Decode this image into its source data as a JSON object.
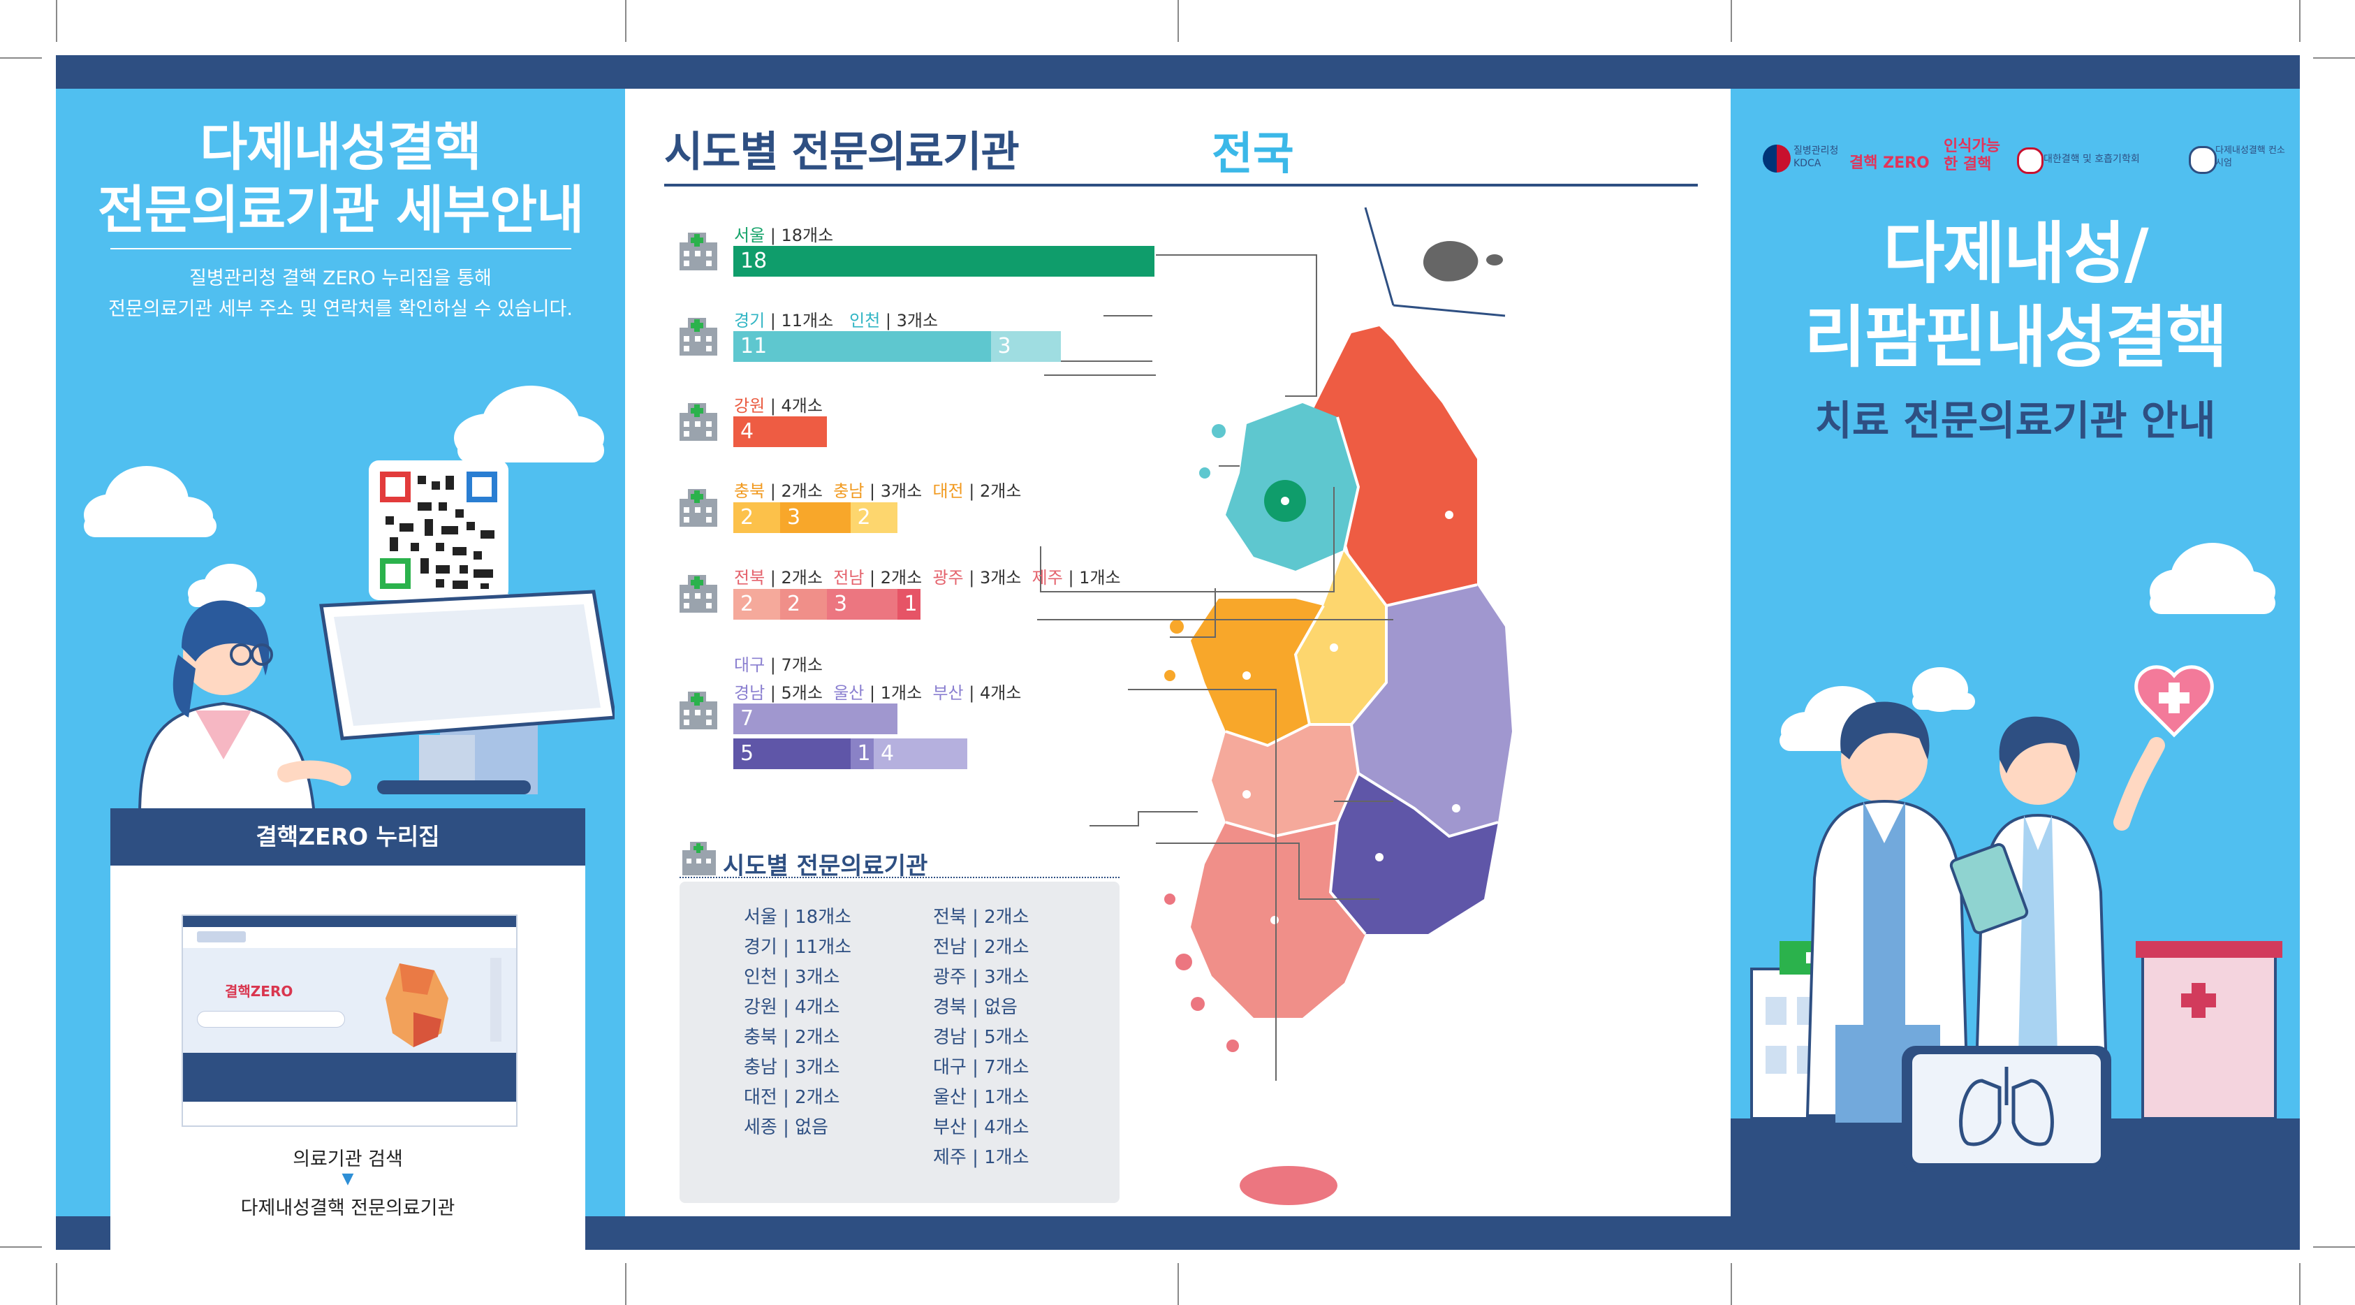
{
  "left": {
    "title_line1": "다제내성결핵",
    "title_line2": "전문의료기관 세부안내",
    "desc_line1": "질병관리청 결핵 ZERO 누리집을 통해",
    "desc_line2": "전문의료기관 세부 주소 및 연락처를 확인하실 수 있습니다.",
    "url": "결핵ZERO 누리집 https://tbzero.kdca.go.kr",
    "browser_brand": "결핵ZERO",
    "caption_search": "의료기관 검색",
    "caption_arrow": "▼",
    "caption_target": "다제내성결핵 전문의료기관"
  },
  "middle": {
    "title": "시도별 전문의료기관",
    "scope": "전국",
    "list_title": "시도별 전문의료기관",
    "regions": [
      {
        "label_parts": [
          {
            "name": "서울",
            "count": "18개소",
            "color": "#16a36a"
          }
        ],
        "segments": [
          {
            "value": 18,
            "color": "#0f9d6b"
          }
        ]
      },
      {
        "label_parts": [
          {
            "name": "경기",
            "count": "11개소",
            "color": "#31b5c4"
          },
          {
            "name": "인천",
            "count": "3개소",
            "color": "#31b5c4"
          }
        ],
        "segments": [
          {
            "value": 11,
            "color": "#5ec7cf"
          },
          {
            "value": 3,
            "color": "#9fdde1"
          }
        ]
      },
      {
        "label_parts": [
          {
            "name": "강원",
            "count": "4개소",
            "color": "#ea5a3f"
          }
        ],
        "segments": [
          {
            "value": 4,
            "color": "#ee5c43"
          }
        ]
      },
      {
        "label_parts": [
          {
            "name": "충북",
            "count": "2개소",
            "color": "#f19a20"
          },
          {
            "name": "충남",
            "count": "3개소",
            "color": "#f19a20"
          },
          {
            "name": "대전",
            "count": "2개소",
            "color": "#f19a20"
          }
        ],
        "segments": [
          {
            "value": 2,
            "color": "#fcc14a"
          },
          {
            "value": 3,
            "color": "#f8a72a"
          },
          {
            "value": 2,
            "color": "#fdd66e"
          }
        ]
      },
      {
        "label_parts": [
          {
            "name": "전북",
            "count": "2개소",
            "color": "#e4626c"
          },
          {
            "name": "전남",
            "count": "2개소",
            "color": "#e4626c"
          },
          {
            "name": "광주",
            "count": "3개소",
            "color": "#e4626c"
          },
          {
            "name": "제주",
            "count": "1개소",
            "color": "#e4626c"
          }
        ],
        "segments": [
          {
            "value": 2,
            "color": "#f5a99b"
          },
          {
            "value": 2,
            "color": "#f08f89"
          },
          {
            "value": 3,
            "color": "#ec7680"
          },
          {
            "value": 1,
            "color": "#e65466"
          }
        ]
      },
      {
        "label_parts": [
          {
            "name": "대구",
            "count": "7개소",
            "color": "#8a7fd0"
          }
        ],
        "extra_parts": [
          {
            "name": "경남",
            "count": "5개소",
            "color": "#8a7fd0"
          },
          {
            "name": "울산",
            "count": "1개소",
            "color": "#8a7fd0"
          },
          {
            "name": "부산",
            "count": "4개소",
            "color": "#8a7fd0"
          }
        ],
        "segments": [
          {
            "value": 7,
            "color": "#a097cf"
          }
        ],
        "segments2": [
          {
            "value": 5,
            "color": "#5f56a8"
          },
          {
            "value": 1,
            "color": "#8a82c6"
          },
          {
            "value": 4,
            "color": "#b5b0de"
          }
        ]
      }
    ],
    "list_left": [
      "서울 | 18개소",
      "경기 | 11개소",
      "인천 | 3개소",
      "강원 | 4개소",
      "충북 | 2개소",
      "충남 | 3개소",
      "대전 | 2개소",
      "세종 | 없음"
    ],
    "list_right": [
      "전북 | 2개소",
      "전남 | 2개소",
      "광주 | 3개소",
      "경북 | 없음",
      "경남 | 5개소",
      "대구 | 7개소",
      "울산 | 1개소",
      "부산 | 4개소",
      "제주 | 1개소"
    ]
  },
  "right": {
    "logos": [
      "질병관리청 KDCA",
      "결핵 ZERO",
      "인식가능한 결핵",
      "대한결핵 및 호흡기학회",
      "다제내성결핵 컨소시엄"
    ],
    "title_line1": "다제내성/",
    "title_line2": "리팜핀내성결핵",
    "subtitle": "치료 전문의료기관 안내"
  },
  "colors": {
    "navy": "#2e4f82",
    "sky": "#50bff0"
  }
}
